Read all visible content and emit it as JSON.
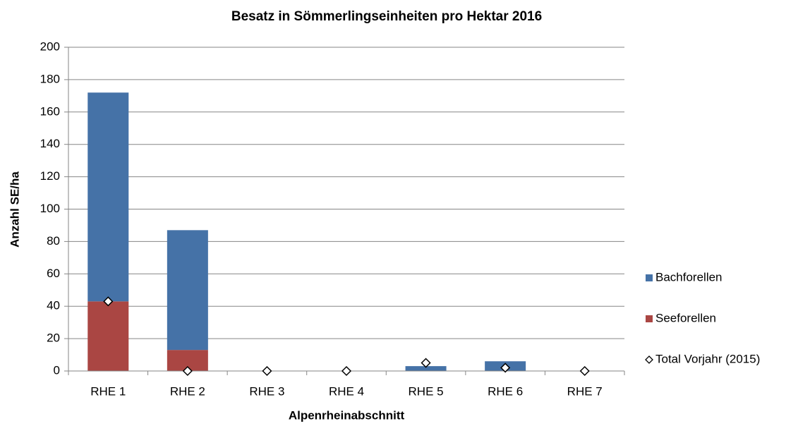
{
  "chart_data": {
    "type": "bar",
    "stacked": true,
    "title": "Besatz in Sömmerlingseinheiten pro Hektar 2016",
    "x_label": "Alpenrheinabschnitt",
    "y_label": "Anzahl SE/ha",
    "categories": [
      "RHE 1",
      "RHE 2",
      "RHE 3",
      "RHE 4",
      "RHE 5",
      "RHE 6",
      "RHE 7"
    ],
    "series": [
      {
        "name": "Seeforellen",
        "type": "bar",
        "color": "#aa4643",
        "values": [
          43,
          13,
          0,
          0,
          0,
          0,
          0
        ]
      },
      {
        "name": "Bachforellen",
        "type": "bar",
        "color": "#4572a7",
        "values": [
          129,
          74,
          0,
          0,
          3,
          6,
          0
        ]
      },
      {
        "name": "Total Vorjahr (2015)",
        "type": "scatter",
        "color": "#ffffff",
        "values": [
          43,
          0,
          0,
          0,
          5,
          2,
          0
        ]
      }
    ],
    "ylim": [
      0,
      200
    ],
    "yticks": [
      0,
      20,
      40,
      60,
      80,
      100,
      120,
      140,
      160,
      180,
      200
    ],
    "grid": true,
    "legend": "right"
  }
}
